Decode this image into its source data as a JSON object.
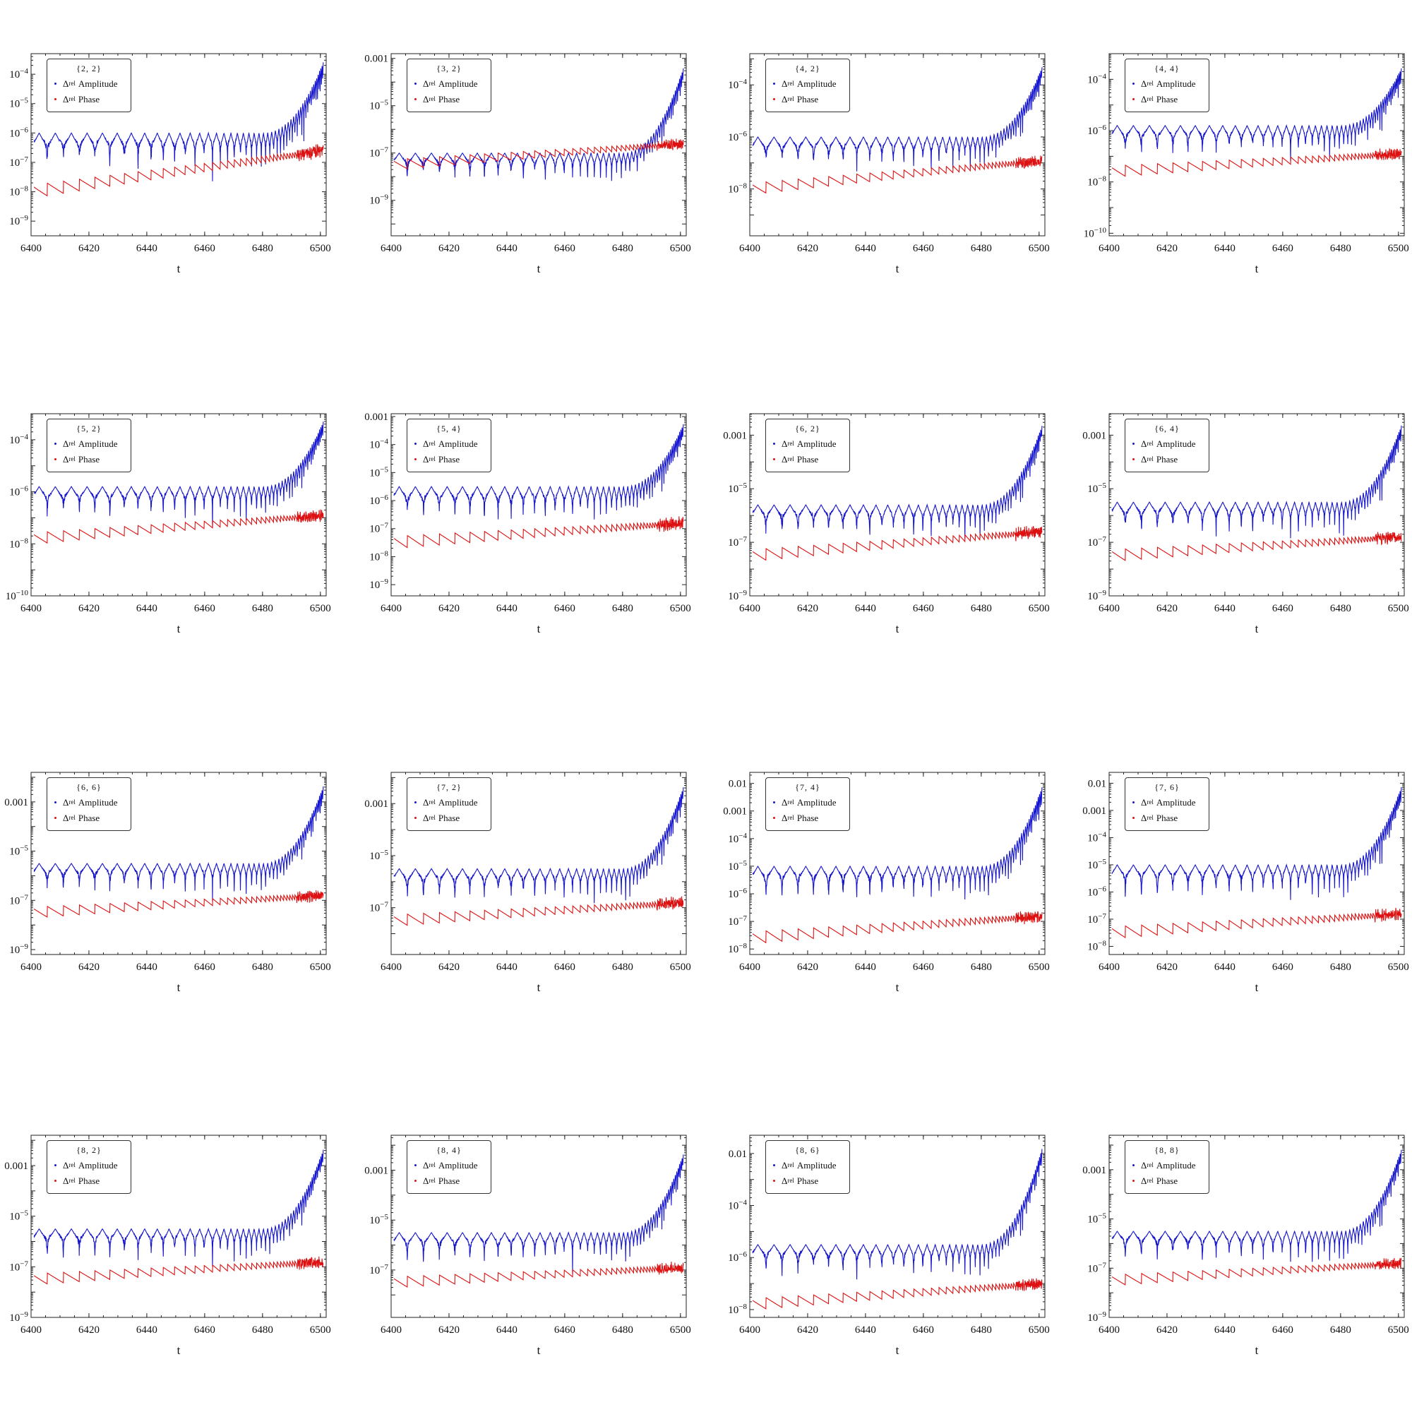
{
  "figure": {
    "legend_series": [
      {
        "delta": "Δ",
        "sub": "rel",
        "label": "Amplitude",
        "color": "#1515cc"
      },
      {
        "delta": "Δ",
        "sub": "rel",
        "label": "Phase",
        "color": "#dd1111"
      }
    ]
  },
  "chart_data": [
    {
      "type": "line",
      "title": "{2, 2}",
      "xlabel": "t",
      "x_ticks": [
        "6400",
        "6420",
        "6440",
        "6460",
        "6480",
        "6500"
      ],
      "xlim": [
        6400,
        6502
      ],
      "yscale": "log",
      "ylim_log10": [
        -9.5,
        -3.3
      ],
      "y_ticks": [
        {
          "label": "10^-4",
          "log": -4
        },
        {
          "label": "10^-5",
          "log": -5
        },
        {
          "label": "10^-6",
          "log": -6
        },
        {
          "label": "10^-7",
          "log": -7
        },
        {
          "label": "10^-8",
          "log": -8
        },
        {
          "label": "10^-9",
          "log": -9
        }
      ],
      "series": [
        {
          "name": "Δrel Amplitude",
          "baseline_log10": -6.0,
          "final_log10": -3.3
        },
        {
          "name": "Δrel Phase",
          "baseline_log10": -8.0,
          "final_log10": -6.6
        }
      ]
    },
    {
      "type": "line",
      "title": "{3, 2}",
      "xlabel": "t",
      "x_ticks": [
        "6400",
        "6420",
        "6440",
        "6460",
        "6480",
        "6500"
      ],
      "xlim": [
        6400,
        6502
      ],
      "yscale": "log",
      "ylim_log10": [
        -10.5,
        -2.8
      ],
      "y_ticks": [
        {
          "label": "0.001",
          "log": -3
        },
        {
          "label": "10^-5",
          "log": -5
        },
        {
          "label": "10^-7",
          "log": -7
        },
        {
          "label": "10^-9",
          "log": -9
        }
      ],
      "series": [
        {
          "name": "Δrel Amplitude",
          "baseline_log10": -7.0,
          "final_log10": -3.0
        },
        {
          "name": "Δrel Phase",
          "baseline_log10": -7.5,
          "final_log10": -6.6
        }
      ]
    },
    {
      "type": "line",
      "title": "{4, 2}",
      "xlabel": "t",
      "x_ticks": [
        "6400",
        "6420",
        "6440",
        "6460",
        "6480",
        "6500"
      ],
      "xlim": [
        6400,
        6502
      ],
      "yscale": "log",
      "ylim_log10": [
        -9.8,
        -2.8
      ],
      "y_ticks": [
        {
          "label": "10^-4",
          "log": -4
        },
        {
          "label": "10^-6",
          "log": -6
        },
        {
          "label": "10^-8",
          "log": -8
        }
      ],
      "series": [
        {
          "name": "Δrel Amplitude",
          "baseline_log10": -6.0,
          "final_log10": -3.0
        },
        {
          "name": "Δrel Phase",
          "baseline_log10": -8.0,
          "final_log10": -6.9
        }
      ]
    },
    {
      "type": "line",
      "title": "{4, 4}",
      "xlabel": "t",
      "x_ticks": [
        "6400",
        "6420",
        "6440",
        "6460",
        "6480",
        "6500"
      ],
      "xlim": [
        6400,
        6502
      ],
      "yscale": "log",
      "ylim_log10": [
        -10.1,
        -3.0
      ],
      "y_ticks": [
        {
          "label": "10^-4",
          "log": -4
        },
        {
          "label": "10^-6",
          "log": -6
        },
        {
          "label": "10^-8",
          "log": -8
        },
        {
          "label": "10^-10",
          "log": -10
        }
      ],
      "series": [
        {
          "name": "Δrel Amplitude",
          "baseline_log10": -5.8,
          "final_log10": -3.3
        },
        {
          "name": "Δrel Phase",
          "baseline_log10": -7.6,
          "final_log10": -6.9
        }
      ]
    },
    {
      "type": "line",
      "title": "{5, 2}",
      "xlabel": "t",
      "x_ticks": [
        "6400",
        "6420",
        "6440",
        "6460",
        "6480",
        "6500"
      ],
      "xlim": [
        6400,
        6502
      ],
      "yscale": "log",
      "ylim_log10": [
        -10.0,
        -3.0
      ],
      "y_ticks": [
        {
          "label": "10^-4",
          "log": -4
        },
        {
          "label": "10^-6",
          "log": -6
        },
        {
          "label": "10^-8",
          "log": -8
        },
        {
          "label": "10^-10",
          "log": -10
        }
      ],
      "series": [
        {
          "name": "Δrel Amplitude",
          "baseline_log10": -5.8,
          "final_log10": -3.0
        },
        {
          "name": "Δrel Phase",
          "baseline_log10": -7.8,
          "final_log10": -6.9
        }
      ]
    },
    {
      "type": "line",
      "title": "{5, 4}",
      "xlabel": "t",
      "x_ticks": [
        "6400",
        "6420",
        "6440",
        "6460",
        "6480",
        "6500"
      ],
      "xlim": [
        6400,
        6502
      ],
      "yscale": "log",
      "ylim_log10": [
        -9.4,
        -2.9
      ],
      "y_ticks": [
        {
          "label": "0.001",
          "log": -3
        },
        {
          "label": "10^-4",
          "log": -4
        },
        {
          "label": "10^-5",
          "log": -5
        },
        {
          "label": "10^-6",
          "log": -6
        },
        {
          "label": "10^-7",
          "log": -7
        },
        {
          "label": "10^-8",
          "log": -8
        },
        {
          "label": "10^-9",
          "log": -9
        }
      ],
      "series": [
        {
          "name": "Δrel Amplitude",
          "baseline_log10": -5.5,
          "final_log10": -3.0
        },
        {
          "name": "Δrel Phase",
          "baseline_log10": -7.5,
          "final_log10": -6.8
        }
      ]
    },
    {
      "type": "line",
      "title": "{6, 2}",
      "xlabel": "t",
      "x_ticks": [
        "6400",
        "6420",
        "6440",
        "6460",
        "6480",
        "6500"
      ],
      "xlim": [
        6400,
        6502
      ],
      "yscale": "log",
      "ylim_log10": [
        -9.0,
        -2.2
      ],
      "y_ticks": [
        {
          "label": "0.001",
          "log": -3
        },
        {
          "label": "10^-5",
          "log": -5
        },
        {
          "label": "10^-7",
          "log": -7
        },
        {
          "label": "10^-9",
          "log": -9
        }
      ],
      "series": [
        {
          "name": "Δrel Amplitude",
          "baseline_log10": -5.6,
          "final_log10": -2.3
        },
        {
          "name": "Δrel Phase",
          "baseline_log10": -7.5,
          "final_log10": -6.6
        }
      ]
    },
    {
      "type": "line",
      "title": "{6, 4}",
      "xlabel": "t",
      "x_ticks": [
        "6400",
        "6420",
        "6440",
        "6460",
        "6480",
        "6500"
      ],
      "xlim": [
        6400,
        6502
      ],
      "yscale": "log",
      "ylim_log10": [
        -9.0,
        -2.2
      ],
      "y_ticks": [
        {
          "label": "0.001",
          "log": -3
        },
        {
          "label": "10^-5",
          "log": -5
        },
        {
          "label": "10^-7",
          "log": -7
        },
        {
          "label": "10^-9",
          "log": -9
        }
      ],
      "series": [
        {
          "name": "Δrel Amplitude",
          "baseline_log10": -5.5,
          "final_log10": -2.3
        },
        {
          "name": "Δrel Phase",
          "baseline_log10": -7.5,
          "final_log10": -6.8
        }
      ]
    },
    {
      "type": "line",
      "title": "{6, 6}",
      "xlabel": "t",
      "x_ticks": [
        "6400",
        "6420",
        "6440",
        "6460",
        "6480",
        "6500"
      ],
      "xlim": [
        6400,
        6502
      ],
      "yscale": "log",
      "ylim_log10": [
        -9.2,
        -1.8
      ],
      "y_ticks": [
        {
          "label": "0.001",
          "log": -3
        },
        {
          "label": "10^-5",
          "log": -5
        },
        {
          "label": "10^-7",
          "log": -7
        },
        {
          "label": "10^-9",
          "log": -9
        }
      ],
      "series": [
        {
          "name": "Δrel Amplitude",
          "baseline_log10": -5.5,
          "final_log10": -2.0
        },
        {
          "name": "Δrel Phase",
          "baseline_log10": -7.5,
          "final_log10": -6.8
        }
      ]
    },
    {
      "type": "line",
      "title": "{7, 2}",
      "xlabel": "t",
      "x_ticks": [
        "6400",
        "6420",
        "6440",
        "6460",
        "6480",
        "6500"
      ],
      "xlim": [
        6400,
        6502
      ],
      "yscale": "log",
      "ylim_log10": [
        -8.8,
        -1.8
      ],
      "y_ticks": [
        {
          "label": "0.001",
          "log": -3
        },
        {
          "label": "10^-5",
          "log": -5
        },
        {
          "label": "10^-7",
          "log": -7
        }
      ],
      "series": [
        {
          "name": "Δrel Amplitude",
          "baseline_log10": -5.5,
          "final_log10": -2.0
        },
        {
          "name": "Δrel Phase",
          "baseline_log10": -7.5,
          "final_log10": -6.8
        }
      ]
    },
    {
      "type": "line",
      "title": "{7, 4}",
      "xlabel": "t",
      "x_ticks": [
        "6400",
        "6420",
        "6440",
        "6460",
        "6480",
        "6500"
      ],
      "xlim": [
        6400,
        6502
      ],
      "yscale": "log",
      "ylim_log10": [
        -8.2,
        -1.6
      ],
      "y_ticks": [
        {
          "label": "0.01",
          "log": -2
        },
        {
          "label": "0.001",
          "log": -3
        },
        {
          "label": "10^-4",
          "log": -4
        },
        {
          "label": "10^-5",
          "log": -5
        },
        {
          "label": "10^-6",
          "log": -6
        },
        {
          "label": "10^-7",
          "log": -7
        },
        {
          "label": "10^-8",
          "log": -8
        }
      ],
      "series": [
        {
          "name": "Δrel Amplitude",
          "baseline_log10": -5.0,
          "final_log10": -1.8
        },
        {
          "name": "Δrel Phase",
          "baseline_log10": -7.6,
          "final_log10": -6.8
        }
      ]
    },
    {
      "type": "line",
      "title": "{7, 6}",
      "xlabel": "t",
      "x_ticks": [
        "6400",
        "6420",
        "6440",
        "6460",
        "6480",
        "6500"
      ],
      "xlim": [
        6400,
        6502
      ],
      "yscale": "log",
      "ylim_log10": [
        -8.3,
        -1.6
      ],
      "y_ticks": [
        {
          "label": "0.01",
          "log": -2
        },
        {
          "label": "0.001",
          "log": -3
        },
        {
          "label": "10^-4",
          "log": -4
        },
        {
          "label": "10^-5",
          "log": -5
        },
        {
          "label": "10^-6",
          "log": -6
        },
        {
          "label": "10^-7",
          "log": -7
        },
        {
          "label": "10^-8",
          "log": -8
        }
      ],
      "series": [
        {
          "name": "Δrel Amplitude",
          "baseline_log10": -5.0,
          "final_log10": -1.8
        },
        {
          "name": "Δrel Phase",
          "baseline_log10": -7.5,
          "final_log10": -6.8
        }
      ]
    },
    {
      "type": "line",
      "title": "{8, 2}",
      "xlabel": "t",
      "x_ticks": [
        "6400",
        "6420",
        "6440",
        "6460",
        "6480",
        "6500"
      ],
      "xlim": [
        6400,
        6502
      ],
      "yscale": "log",
      "ylim_log10": [
        -9.0,
        -1.8
      ],
      "y_ticks": [
        {
          "label": "0.001",
          "log": -3
        },
        {
          "label": "10^-5",
          "log": -5
        },
        {
          "label": "10^-7",
          "log": -7
        },
        {
          "label": "10^-9",
          "log": -9
        }
      ],
      "series": [
        {
          "name": "Δrel Amplitude",
          "baseline_log10": -5.5,
          "final_log10": -2.0
        },
        {
          "name": "Δrel Phase",
          "baseline_log10": -7.5,
          "final_log10": -6.8
        }
      ]
    },
    {
      "type": "line",
      "title": "{8, 4}",
      "xlabel": "t",
      "x_ticks": [
        "6400",
        "6420",
        "6440",
        "6460",
        "6480",
        "6500"
      ],
      "xlim": [
        6400,
        6502
      ],
      "yscale": "log",
      "ylim_log10": [
        -8.9,
        -1.6
      ],
      "y_ticks": [
        {
          "label": "0.001",
          "log": -3
        },
        {
          "label": "10^-5",
          "log": -5
        },
        {
          "label": "10^-7",
          "log": -7
        }
      ],
      "series": [
        {
          "name": "Δrel Amplitude",
          "baseline_log10": -5.5,
          "final_log10": -2.0
        },
        {
          "name": "Δrel Phase",
          "baseline_log10": -7.5,
          "final_log10": -6.9
        }
      ]
    },
    {
      "type": "line",
      "title": "{8, 6}",
      "xlabel": "t",
      "x_ticks": [
        "6400",
        "6420",
        "6440",
        "6460",
        "6480",
        "6500"
      ],
      "xlim": [
        6400,
        6502
      ],
      "yscale": "log",
      "ylim_log10": [
        -8.3,
        -1.3
      ],
      "y_ticks": [
        {
          "label": "0.01",
          "log": -2
        },
        {
          "label": "10^-4",
          "log": -4
        },
        {
          "label": "10^-6",
          "log": -6
        },
        {
          "label": "10^-8",
          "log": -8
        }
      ],
      "series": [
        {
          "name": "Δrel Amplitude",
          "baseline_log10": -5.5,
          "final_log10": -1.4
        },
        {
          "name": "Δrel Phase",
          "baseline_log10": -7.8,
          "final_log10": -7.0
        }
      ]
    },
    {
      "type": "line",
      "title": "{8, 8}",
      "xlabel": "t",
      "x_ticks": [
        "6400",
        "6420",
        "6440",
        "6460",
        "6480",
        "6500"
      ],
      "xlim": [
        6400,
        6502
      ],
      "yscale": "log",
      "ylim_log10": [
        -9.0,
        -1.6
      ],
      "y_ticks": [
        {
          "label": "0.001",
          "log": -3
        },
        {
          "label": "10^-5",
          "log": -5
        },
        {
          "label": "10^-7",
          "log": -7
        },
        {
          "label": "10^-9",
          "log": -9
        }
      ],
      "series": [
        {
          "name": "Δrel Amplitude",
          "baseline_log10": -5.5,
          "final_log10": -1.8
        },
        {
          "name": "Δrel Phase",
          "baseline_log10": -7.5,
          "final_log10": -6.8
        }
      ]
    }
  ]
}
